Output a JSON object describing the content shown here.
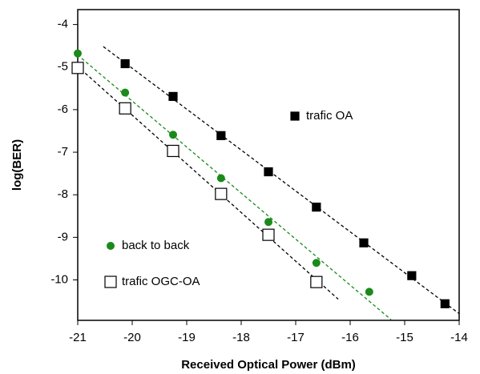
{
  "chart_data": {
    "type": "scatter",
    "x_label": "Received Optical Power (dBm)",
    "y_label": "log(BER)",
    "xlim": [
      -21,
      -14
    ],
    "xticks": [
      -21,
      -20,
      -19,
      -18,
      -17,
      -16,
      -15,
      -14
    ],
    "ylim": [
      -10.95,
      -3.65
    ],
    "yticks": [
      -4,
      -5,
      -6,
      -7,
      -8,
      -9,
      -10
    ],
    "trendlines": true,
    "series": [
      {
        "name": "trafic OA",
        "color": "#000000",
        "marker": "filled-square",
        "x": [
          -20.13,
          -19.25,
          -18.37,
          -17.5,
          -16.62,
          -15.75,
          -14.87,
          -14.26
        ],
        "values": [
          -4.92,
          -5.69,
          -6.61,
          -7.46,
          -8.29,
          -9.13,
          -9.9,
          -10.56
        ]
      },
      {
        "name": "back to back",
        "color": "#1a8a1a",
        "marker": "filled-circle",
        "x": [
          -21,
          -20.13,
          -19.25,
          -18.37,
          -17.5,
          -16.62,
          -15.65
        ],
        "values": [
          -4.68,
          -5.6,
          -6.59,
          -7.61,
          -8.64,
          -9.6,
          -10.28
        ]
      },
      {
        "name": "trafic OGC-OA",
        "color": "#000000",
        "marker": "open-square",
        "x": [
          -21,
          -20.13,
          -19.25,
          -18.37,
          -17.5,
          -16.62
        ],
        "values": [
          -5.02,
          -5.97,
          -6.97,
          -7.98,
          -8.94,
          -10.05
        ]
      }
    ]
  }
}
